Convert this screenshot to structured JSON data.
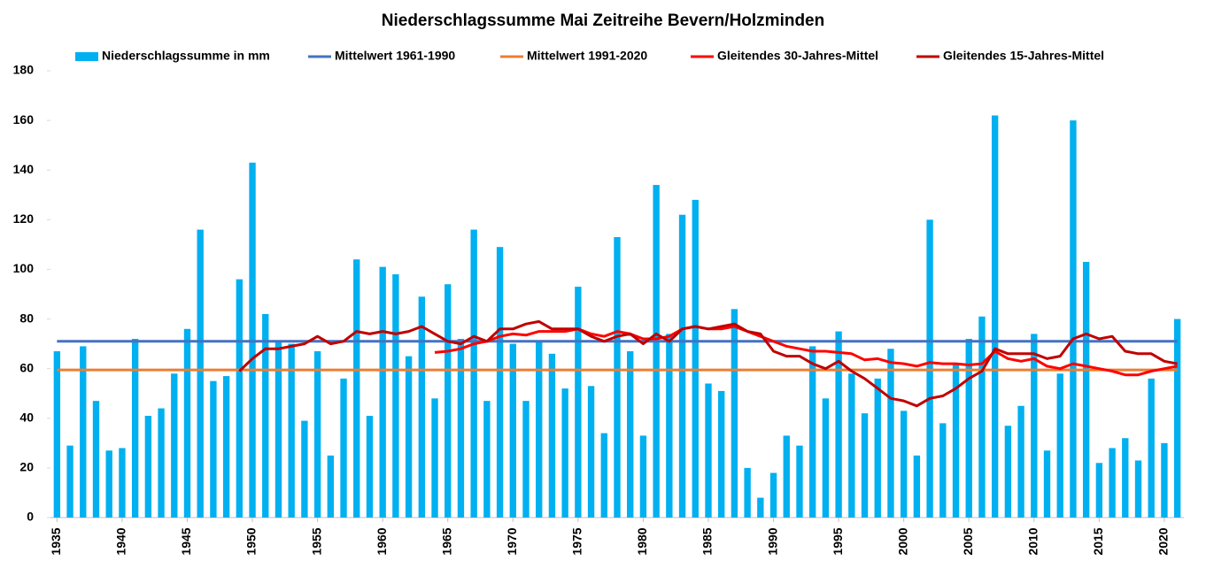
{
  "chart_data": {
    "type": "bar-line",
    "title": "Niederschlagssumme Mai Zeitreihe Bevern/Holzminden",
    "x": [
      1935,
      1936,
      1937,
      1938,
      1939,
      1940,
      1941,
      1942,
      1943,
      1944,
      1945,
      1946,
      1947,
      1948,
      1949,
      1950,
      1951,
      1952,
      1953,
      1954,
      1955,
      1956,
      1957,
      1958,
      1959,
      1960,
      1961,
      1962,
      1963,
      1964,
      1965,
      1966,
      1967,
      1968,
      1969,
      1970,
      1971,
      1972,
      1973,
      1974,
      1975,
      1976,
      1977,
      1978,
      1979,
      1980,
      1981,
      1982,
      1983,
      1984,
      1985,
      1986,
      1987,
      1988,
      1989,
      1990,
      1991,
      1992,
      1993,
      1994,
      1995,
      1996,
      1997,
      1998,
      1999,
      2000,
      2001,
      2002,
      2003,
      2004,
      2005,
      2006,
      2007,
      2008,
      2009,
      2010,
      2011,
      2012,
      2013,
      2014,
      2015,
      2016,
      2017,
      2018,
      2019,
      2020,
      2021
    ],
    "xlim": [
      1934.5,
      2021.5
    ],
    "xticks": [
      1935,
      1940,
      1945,
      1950,
      1955,
      1960,
      1965,
      1970,
      1975,
      1980,
      1985,
      1990,
      1995,
      2000,
      2005,
      2010,
      2015,
      2020
    ],
    "ylim": [
      0,
      180
    ],
    "yticks": [
      0,
      20,
      40,
      60,
      80,
      100,
      120,
      140,
      160,
      180
    ],
    "series": [
      {
        "name": "Niederschlagssumme in mm",
        "kind": "bar",
        "color": "#00b0f0",
        "values": [
          67,
          29,
          69,
          47,
          27,
          28,
          72,
          41,
          44,
          58,
          76,
          116,
          55,
          57,
          96,
          143,
          82,
          71,
          70,
          39,
          67,
          25,
          56,
          104,
          41,
          101,
          98,
          65,
          89,
          48,
          94,
          72,
          116,
          47,
          109,
          70,
          47,
          71,
          66,
          52,
          93,
          53,
          34,
          113,
          67,
          33,
          134,
          74,
          122,
          128,
          54,
          51,
          84,
          20,
          8,
          18,
          33,
          29,
          69,
          48,
          75,
          58,
          42,
          56,
          68,
          43,
          25,
          120,
          38,
          62,
          72,
          81,
          162,
          37,
          45,
          74,
          27,
          58,
          160,
          103,
          22,
          28,
          32,
          23,
          56,
          30,
          80
        ]
      },
      {
        "name": "Mittelwert 1961-1990",
        "kind": "hline",
        "color": "#4472c4",
        "value": 71
      },
      {
        "name": "Mittelwert 1991-2020",
        "kind": "hline",
        "color": "#ed7d31",
        "value": 59.5
      },
      {
        "name": "Gleitendes 30-Jahres-Mittel",
        "kind": "line",
        "color": "#ff0000",
        "values": [
          null,
          null,
          null,
          null,
          null,
          null,
          null,
          null,
          null,
          null,
          null,
          null,
          null,
          null,
          null,
          null,
          null,
          null,
          null,
          null,
          null,
          null,
          null,
          null,
          null,
          null,
          null,
          null,
          null,
          66.5,
          67,
          68,
          70,
          71,
          73,
          74,
          73.5,
          75,
          75,
          75,
          76,
          74,
          73,
          75,
          74,
          72,
          72,
          73,
          76,
          77,
          76,
          76,
          77,
          75,
          73,
          71,
          69,
          68,
          67,
          67,
          66.5,
          66,
          63.5,
          64,
          62.5,
          62,
          61,
          62.5,
          62,
          62,
          61.5,
          62,
          67,
          64,
          63,
          64,
          61,
          60,
          62,
          61,
          60,
          59,
          57.5,
          57.5,
          59,
          60,
          61
        ]
      },
      {
        "name": "Gleitendes 15-Jahres-Mittel",
        "kind": "line",
        "color": "#c00000",
        "values": [
          null,
          null,
          null,
          null,
          null,
          null,
          null,
          null,
          null,
          null,
          null,
          null,
          null,
          null,
          59,
          64,
          68,
          68,
          69,
          70,
          73,
          70,
          71,
          75,
          74,
          75,
          74,
          75,
          77,
          74,
          71,
          70,
          73,
          71,
          76,
          76,
          78,
          79,
          76,
          76,
          76,
          73,
          71,
          73,
          74,
          70,
          74,
          71,
          76,
          77,
          76,
          77,
          78,
          75,
          74,
          67,
          65,
          65,
          62,
          60,
          63,
          59,
          56,
          52,
          48,
          47,
          45,
          48,
          49,
          52,
          56,
          59,
          68,
          66,
          66,
          66,
          64,
          65,
          72,
          74,
          72,
          73,
          67,
          66,
          66,
          63,
          62
        ]
      }
    ]
  }
}
